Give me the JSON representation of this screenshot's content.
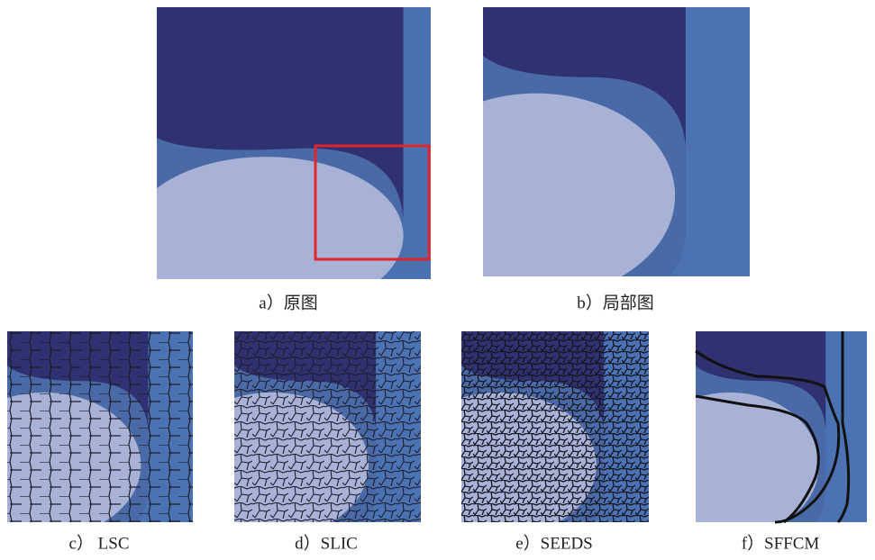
{
  "figure": {
    "panels": [
      {
        "caption": "a）原图"
      },
      {
        "caption": "b）局部图"
      },
      {
        "caption": "c） LSC"
      },
      {
        "caption": "d）SLIC"
      },
      {
        "caption": "e）SEEDS"
      },
      {
        "caption": "f）SFFCM"
      }
    ]
  }
}
